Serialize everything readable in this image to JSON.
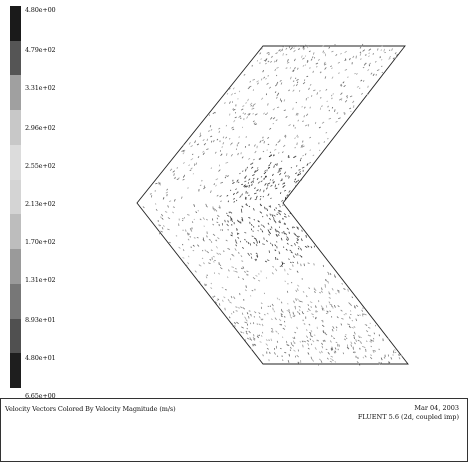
{
  "colorbar": {
    "labels": [
      "4.80e+00",
      "4.79e+02",
      "3.31e+02",
      "2.96e+02",
      "2.55e+02",
      "2.13e+02",
      "1.70e+02",
      "1.31e+02",
      "8.93e+01",
      "4.80e+01",
      "6.65e+00"
    ],
    "colors": [
      "#1a1a1a",
      "#555555",
      "#a0a0a0",
      "#c8c8c8",
      "#dcdcdc",
      "#d4d4d4",
      "#bdbdbd",
      "#9a9a9a",
      "#777777",
      "#505050",
      "#1e1e1e"
    ]
  },
  "plot": {
    "title": "Velocity Vectors Colored By Velocity Magnitude (m/s)",
    "date": "Mar 04, 2003",
    "solver": "FLUENT 5.6 (2d, coupled imp)"
  }
}
